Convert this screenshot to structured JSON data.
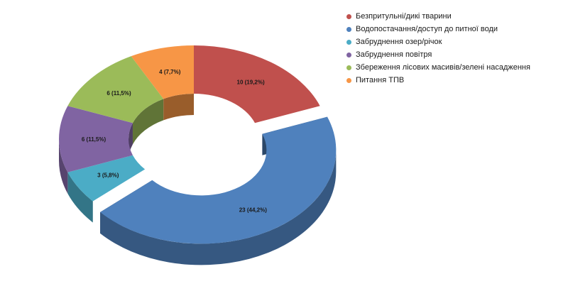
{
  "chart_data": {
    "type": "pie",
    "variant": "3d-doughnut",
    "title": "",
    "legend_position": "right",
    "series": [
      {
        "label": "Безпритульні/дикі тварини",
        "value": 10,
        "percent": 19.2,
        "data_label": "10 (19,2%)",
        "color": "#C0504D"
      },
      {
        "label": "Водопостачання/доступ до питної води",
        "value": 23,
        "percent": 44.2,
        "data_label": "23 (44,2%)",
        "color": "#4F81BD",
        "exploded": true
      },
      {
        "label": "Забруднення озер/річок",
        "value": 3,
        "percent": 5.8,
        "data_label": "3 (5,8%)",
        "color": "#4BACC6"
      },
      {
        "label": "Забруднення повітря",
        "value": 6,
        "percent": 11.5,
        "data_label": "6 (11,5%)",
        "color": "#8064A2"
      },
      {
        "label": "Збереження лісових масивів/зелені насадження",
        "value": 6,
        "percent": 11.5,
        "data_label": "6 (11,5%)",
        "color": "#9BBB59"
      },
      {
        "label": "Питання ТПВ",
        "value": 4,
        "percent": 7.7,
        "data_label": "4 (7,7%)",
        "color": "#F79646"
      }
    ]
  }
}
